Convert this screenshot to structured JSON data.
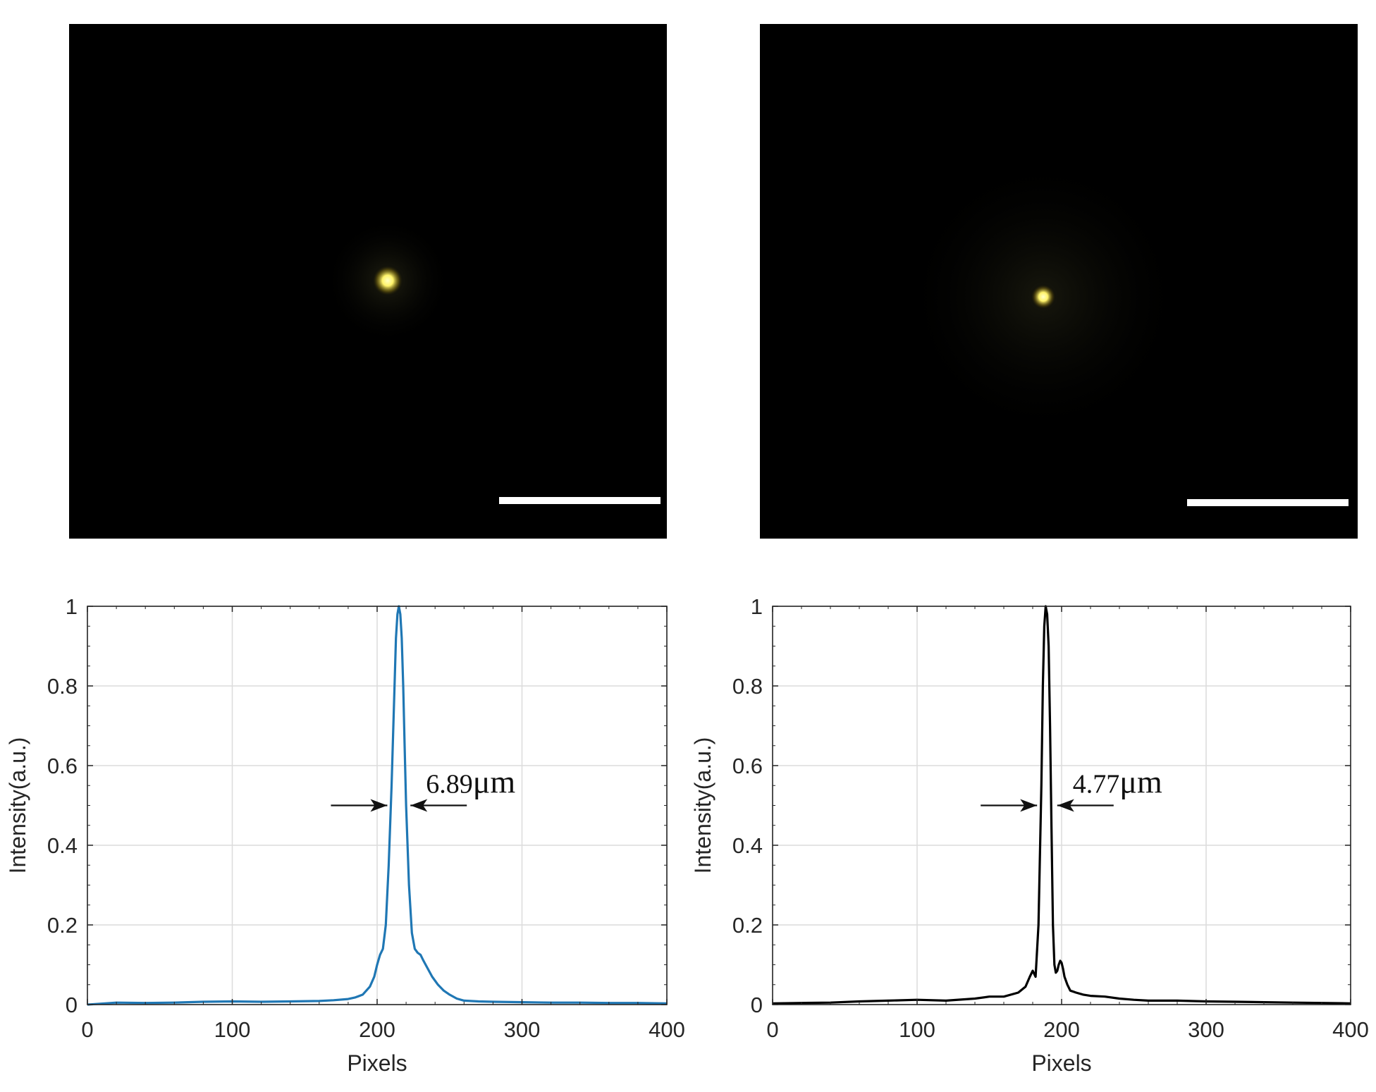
{
  "micrographs": [
    {
      "name": "left",
      "spot_color": "#fff36a",
      "scale_bar_color": "#ffffff"
    },
    {
      "name": "right",
      "spot_color": "#fff36a",
      "scale_bar_color": "#ffffff"
    }
  ],
  "chart_data": [
    {
      "type": "line",
      "title": "",
      "xlabel": "Pixels",
      "ylabel": "Intensity(a.u.)",
      "xlim": [
        0,
        400
      ],
      "ylim": [
        0,
        1
      ],
      "xticks": [
        "0",
        "100",
        "200",
        "300",
        "400"
      ],
      "yticks": [
        "0",
        "0.2",
        "0.4",
        "0.6",
        "0.8",
        "1"
      ],
      "grid": true,
      "legend": "none",
      "series": [
        {
          "color": "#1f77b4",
          "x": [
            0,
            20,
            40,
            60,
            80,
            100,
            120,
            140,
            160,
            170,
            180,
            185,
            190,
            195,
            198,
            200,
            202,
            204,
            206,
            208,
            210,
            212,
            213,
            214,
            215,
            216,
            217,
            218,
            219,
            220,
            222,
            224,
            226,
            228,
            230,
            232,
            235,
            238,
            242,
            246,
            250,
            255,
            260,
            270,
            280,
            300,
            320,
            340,
            360,
            380,
            400
          ],
          "y": [
            0.0,
            0.005,
            0.004,
            0.005,
            0.007,
            0.008,
            0.007,
            0.008,
            0.009,
            0.011,
            0.014,
            0.018,
            0.025,
            0.045,
            0.07,
            0.1,
            0.125,
            0.14,
            0.2,
            0.35,
            0.55,
            0.8,
            0.92,
            0.98,
            1.0,
            0.98,
            0.92,
            0.8,
            0.65,
            0.5,
            0.3,
            0.18,
            0.14,
            0.13,
            0.125,
            0.11,
            0.09,
            0.07,
            0.05,
            0.035,
            0.025,
            0.015,
            0.01,
            0.008,
            0.007,
            0.006,
            0.005,
            0.005,
            0.004,
            0.004,
            0.003
          ]
        }
      ],
      "annotation": {
        "value": "6.89",
        "unit": "μm",
        "x_left": 208,
        "x_right": 222,
        "y": 0.5
      }
    },
    {
      "type": "line",
      "title": "",
      "xlabel": "Pixels",
      "ylabel": "Intensity(a.u.)",
      "xlim": [
        0,
        400
      ],
      "ylim": [
        0,
        1
      ],
      "xticks": [
        "0",
        "100",
        "200",
        "300",
        "400"
      ],
      "yticks": [
        "0",
        "0.2",
        "0.4",
        "0.6",
        "0.8",
        "1"
      ],
      "grid": true,
      "legend": "none",
      "series": [
        {
          "color": "#000000",
          "x": [
            0,
            20,
            40,
            60,
            80,
            100,
            120,
            140,
            150,
            160,
            170,
            175,
            178,
            180,
            182,
            184,
            186,
            187,
            188,
            189,
            190,
            191,
            192,
            193,
            194,
            195,
            196,
            197,
            198,
            199,
            200,
            201,
            202,
            204,
            206,
            210,
            215,
            220,
            230,
            240,
            250,
            260,
            280,
            300,
            320,
            340,
            360,
            380,
            400
          ],
          "y": [
            0.003,
            0.004,
            0.005,
            0.008,
            0.01,
            0.012,
            0.01,
            0.015,
            0.02,
            0.02,
            0.03,
            0.045,
            0.07,
            0.085,
            0.07,
            0.2,
            0.55,
            0.8,
            0.95,
            1.0,
            0.98,
            0.9,
            0.7,
            0.45,
            0.2,
            0.1,
            0.08,
            0.085,
            0.1,
            0.11,
            0.105,
            0.09,
            0.07,
            0.05,
            0.035,
            0.03,
            0.025,
            0.022,
            0.02,
            0.015,
            0.012,
            0.01,
            0.01,
            0.008,
            0.007,
            0.006,
            0.005,
            0.004,
            0.003
          ]
        }
      ],
      "annotation": {
        "value": "4.77",
        "unit": "μm",
        "x_left": 184,
        "x_right": 196,
        "y": 0.5
      }
    }
  ]
}
